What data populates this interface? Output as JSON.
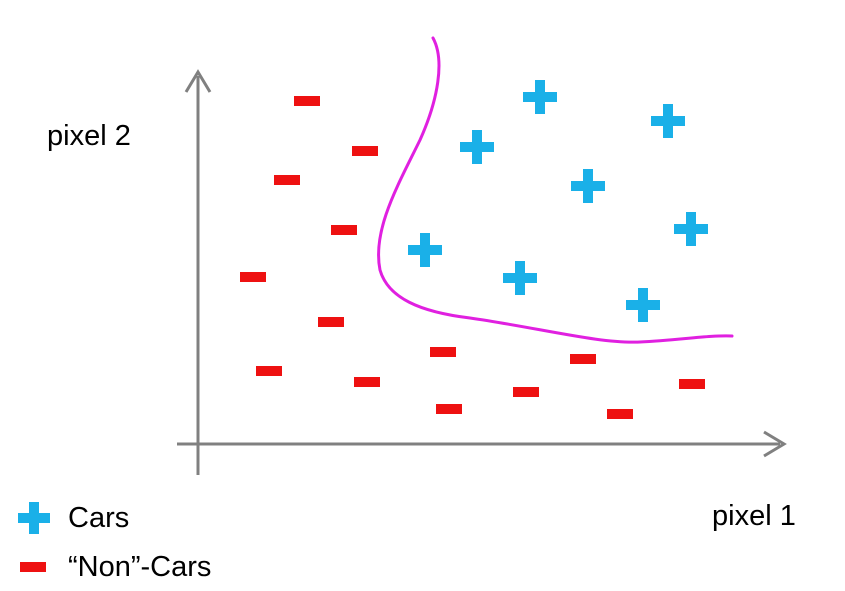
{
  "axes": {
    "x_label": "pixel 1",
    "y_label": "pixel 2",
    "axis_color": "#808080"
  },
  "legend": {
    "items": [
      {
        "label": "Cars",
        "marker": "plus-icon",
        "color": "#1ab0e8"
      },
      {
        "label": "“Non”-Cars",
        "marker": "minus-icon",
        "color": "#ee1111"
      }
    ]
  },
  "colors": {
    "positive": "#1ab0e8",
    "negative": "#ee1111",
    "boundary": "#e020e0"
  }
}
